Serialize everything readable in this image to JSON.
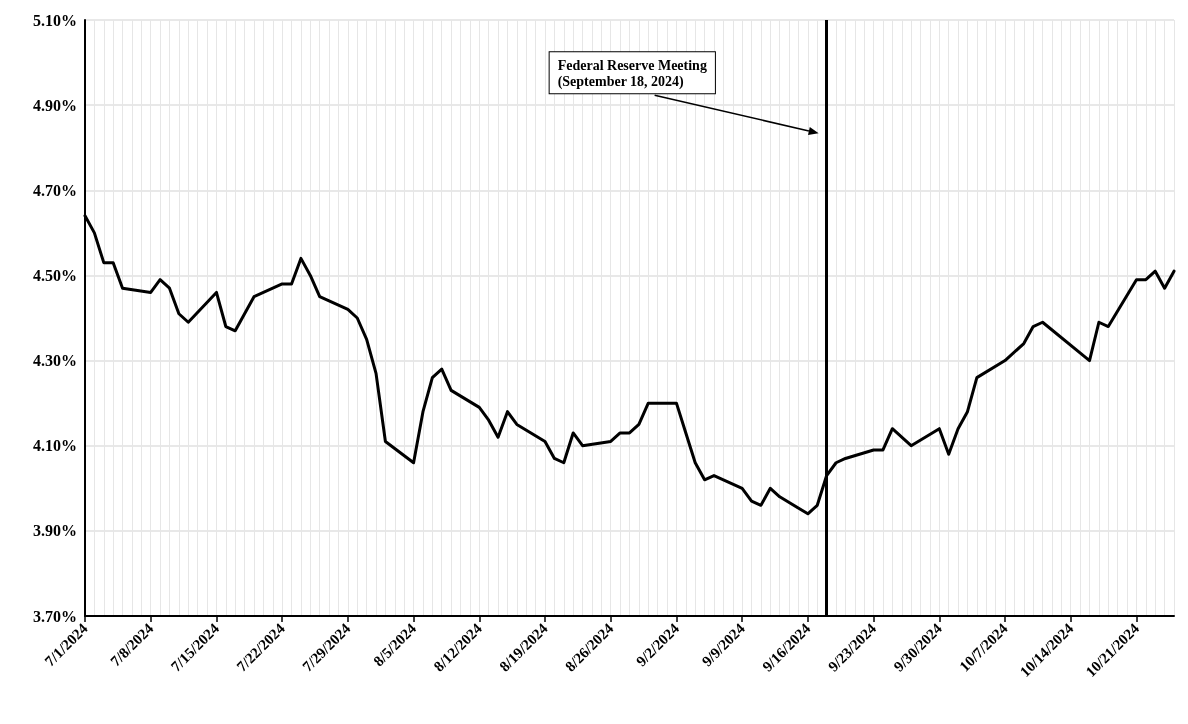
{
  "chart_data": {
    "type": "line",
    "x": [
      "2024-07-01",
      "2024-07-02",
      "2024-07-03",
      "2024-07-04",
      "2024-07-05",
      "2024-07-08",
      "2024-07-09",
      "2024-07-10",
      "2024-07-11",
      "2024-07-12",
      "2024-07-15",
      "2024-07-16",
      "2024-07-17",
      "2024-07-19",
      "2024-07-22",
      "2024-07-23",
      "2024-07-24",
      "2024-07-25",
      "2024-07-26",
      "2024-07-29",
      "2024-07-30",
      "2024-07-31",
      "2024-08-01",
      "2024-08-02",
      "2024-08-05",
      "2024-08-06",
      "2024-08-07",
      "2024-08-08",
      "2024-08-09",
      "2024-08-12",
      "2024-08-13",
      "2024-08-14",
      "2024-08-15",
      "2024-08-16",
      "2024-08-19",
      "2024-08-20",
      "2024-08-21",
      "2024-08-22",
      "2024-08-23",
      "2024-08-26",
      "2024-08-27",
      "2024-08-28",
      "2024-08-29",
      "2024-08-30",
      "2024-09-02",
      "2024-09-03",
      "2024-09-04",
      "2024-09-05",
      "2024-09-06",
      "2024-09-09",
      "2024-09-10",
      "2024-09-11",
      "2024-09-12",
      "2024-09-13",
      "2024-09-16",
      "2024-09-17",
      "2024-09-18",
      "2024-09-19",
      "2024-09-20",
      "2024-09-23",
      "2024-09-24",
      "2024-09-25",
      "2024-09-27",
      "2024-09-30",
      "2024-10-01",
      "2024-10-02",
      "2024-10-03",
      "2024-10-04",
      "2024-10-07",
      "2024-10-09",
      "2024-10-10",
      "2024-10-11",
      "2024-10-16",
      "2024-10-17",
      "2024-10-18",
      "2024-10-21",
      "2024-10-22",
      "2024-10-23",
      "2024-10-24",
      "2024-10-25"
    ],
    "series": [
      {
        "color": "#000000",
        "values": [
          4.64,
          4.6,
          4.53,
          4.53,
          4.47,
          4.46,
          4.49,
          4.47,
          4.41,
          4.39,
          4.46,
          4.38,
          4.37,
          4.45,
          4.48,
          4.48,
          4.54,
          4.5,
          4.45,
          4.42,
          4.4,
          4.35,
          4.27,
          4.11,
          4.06,
          4.18,
          4.26,
          4.28,
          4.23,
          4.19,
          4.16,
          4.12,
          4.18,
          4.15,
          4.11,
          4.07,
          4.06,
          4.13,
          4.1,
          4.11,
          4.13,
          4.13,
          4.15,
          4.2,
          4.2,
          4.13,
          4.06,
          4.02,
          4.03,
          4.0,
          3.97,
          3.96,
          4.0,
          3.98,
          3.94,
          3.96,
          4.03,
          4.06,
          4.07,
          4.09,
          4.09,
          4.14,
          4.1,
          4.14,
          4.08,
          4.14,
          4.18,
          4.26,
          4.3,
          4.34,
          4.38,
          4.39,
          4.3,
          4.39,
          4.38,
          4.49,
          4.49,
          4.51,
          4.47,
          4.51
        ]
      }
    ],
    "xlim": [
      "2024-07-01",
      "2024-10-25"
    ],
    "xticks": [
      {
        "value": "2024-07-01",
        "label": "7/1/2024"
      },
      {
        "value": "2024-07-08",
        "label": "7/8/2024"
      },
      {
        "value": "2024-07-15",
        "label": "7/15/2024"
      },
      {
        "value": "2024-07-22",
        "label": "7/22/2024"
      },
      {
        "value": "2024-07-29",
        "label": "7/29/2024"
      },
      {
        "value": "2024-08-05",
        "label": "8/5/2024"
      },
      {
        "value": "2024-08-12",
        "label": "8/12/2024"
      },
      {
        "value": "2024-08-19",
        "label": "8/19/2024"
      },
      {
        "value": "2024-08-26",
        "label": "8/26/2024"
      },
      {
        "value": "2024-09-02",
        "label": "9/2/2024"
      },
      {
        "value": "2024-09-09",
        "label": "9/9/2024"
      },
      {
        "value": "2024-09-16",
        "label": "9/16/2024"
      },
      {
        "value": "2024-09-23",
        "label": "9/23/2024"
      },
      {
        "value": "2024-09-30",
        "label": "9/30/2024"
      },
      {
        "value": "2024-10-07",
        "label": "10/7/2024"
      },
      {
        "value": "2024-10-14",
        "label": "10/14/2024"
      },
      {
        "value": "2024-10-21",
        "label": "10/21/2024"
      }
    ],
    "ylim": [
      3.7,
      5.1
    ],
    "yticks": [
      {
        "value": 3.7,
        "label": "3.70%"
      },
      {
        "value": 3.9,
        "label": "3.90%"
      },
      {
        "value": 4.1,
        "label": "4.10%"
      },
      {
        "value": 4.3,
        "label": "4.30%"
      },
      {
        "value": 4.5,
        "label": "4.50%"
      },
      {
        "value": 4.7,
        "label": "4.70%"
      },
      {
        "value": 4.9,
        "label": "4.90%"
      },
      {
        "value": 5.1,
        "label": "5.10%"
      }
    ],
    "grid": true,
    "marker": "none",
    "line_style": "solid",
    "ref_lines": [
      {
        "axis": "x",
        "value": "2024-09-18",
        "label": "Federal Reserve Meeting\n(September 18, 2024)",
        "color": "#000000",
        "line_style": "solid"
      }
    ]
  }
}
